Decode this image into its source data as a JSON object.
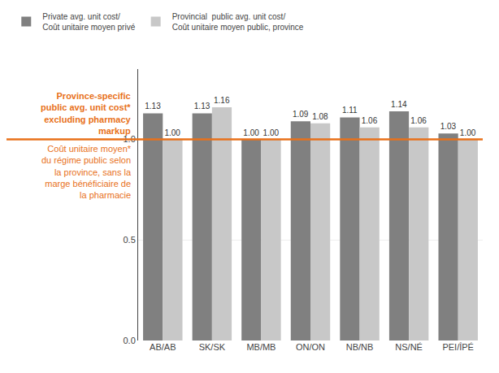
{
  "chart_data": {
    "type": "bar",
    "categories": [
      "AB/AB",
      "SK/SK",
      "MB/MB",
      "ON/ON",
      "NB/NB",
      "NS/NÉ",
      "PEI/ÎPÉ"
    ],
    "series": [
      {
        "name": "Private avg. unit cost/\nCoût unitaire moyen privé",
        "color": "#808080",
        "values": [
          1.13,
          1.13,
          1.0,
          1.09,
          1.11,
          1.14,
          1.03
        ],
        "value_labels": [
          "1.13",
          "1.13",
          "1.00",
          "1.09",
          "1.11",
          "1.14",
          "1.03"
        ]
      },
      {
        "name": "Provincial  public avg. unit cost/\nCoût unitaire moyen public, province",
        "color": "#c8c8c8",
        "values": [
          1.0,
          1.16,
          1.0,
          1.08,
          1.06,
          1.06,
          1.0
        ],
        "value_labels": [
          "1.00",
          "1.16",
          "1.00",
          "1.08",
          "1.06",
          "1.06",
          "1.00"
        ]
      }
    ],
    "reference_line": {
      "value": 1.0,
      "color": "#e8711a"
    },
    "annotations": [
      "Province-specific\npublic avg. unit cost*\nexcluding pharmacy\nmarkup",
      "Coût unitaire moyen*\ndu régime public selon\nla province, sans la\nmarge bénéficiaire de\nla pharmacie"
    ],
    "ylim": [
      0.0,
      1.35
    ],
    "yticks": [
      {
        "value": 0.0,
        "label": "0.0"
      },
      0.5,
      {
        "value": 1.0,
        "label": "1.0"
      }
    ],
    "grid": true,
    "legend": "top",
    "data_labels": true
  }
}
